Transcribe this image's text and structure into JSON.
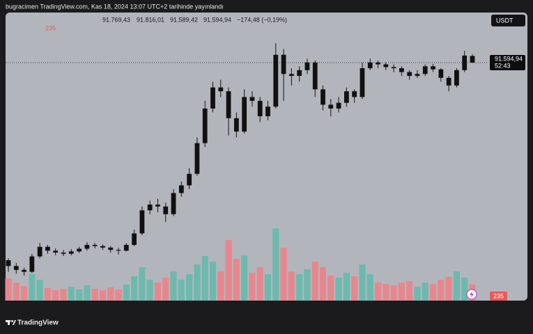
{
  "header": {
    "title": "bugracimen TradingView.com, Kas 18, 2024 13:07 UTC+2 tarihinde yayınlandı"
  },
  "chart_data": {
    "type": "candlestick",
    "currency": "USDT",
    "ohlc_labels": [
      "91.769,43",
      "91.816,01",
      "91.589,42",
      "91.594,94"
    ],
    "change_label": "−174,48 (−0,19%)",
    "last_price_label": "91.594,94",
    "countdown": "52:43",
    "volume_label": "235",
    "ylim": [
      85400,
      92900
    ],
    "vlim": [
      0,
      1300
    ],
    "candle_color": "#111111",
    "up_color": "#6cb9ad",
    "down_color": "#e7878d",
    "ohlc": [
      [
        86450,
        86500,
        86150,
        86300
      ],
      [
        86300,
        86380,
        86100,
        86200
      ],
      [
        86200,
        86260,
        86050,
        86150
      ],
      [
        86150,
        86620,
        86120,
        86550
      ],
      [
        86550,
        86900,
        86500,
        86800
      ],
      [
        86800,
        86850,
        86620,
        86700
      ],
      [
        86700,
        86760,
        86580,
        86650
      ],
      [
        86650,
        86720,
        86560,
        86620
      ],
      [
        86620,
        86740,
        86580,
        86680
      ],
      [
        86680,
        86800,
        86640,
        86750
      ],
      [
        86750,
        86920,
        86700,
        86850
      ],
      [
        86850,
        86900,
        86760,
        86820
      ],
      [
        86820,
        86860,
        86720,
        86780
      ],
      [
        86780,
        86820,
        86650,
        86720
      ],
      [
        86720,
        86780,
        86600,
        86700
      ],
      [
        86700,
        86900,
        86680,
        86850
      ],
      [
        86850,
        87250,
        86820,
        87150
      ],
      [
        87150,
        87850,
        87100,
        87750
      ],
      [
        87750,
        88000,
        87650,
        87900
      ],
      [
        87900,
        88050,
        87700,
        87850
      ],
      [
        87850,
        87950,
        87450,
        87650
      ],
      [
        87650,
        88300,
        87600,
        88200
      ],
      [
        88200,
        88500,
        88100,
        88400
      ],
      [
        88400,
        88850,
        88300,
        88700
      ],
      [
        88700,
        89650,
        88650,
        89500
      ],
      [
        89500,
        90600,
        89400,
        90400
      ],
      [
        90400,
        91100,
        90300,
        90950
      ],
      [
        90950,
        91150,
        90700,
        90850
      ],
      [
        90850,
        90950,
        89700,
        90150
      ],
      [
        90150,
        90300,
        89650,
        89800
      ],
      [
        89800,
        90900,
        89750,
        90700
      ],
      [
        90700,
        90850,
        90450,
        90600
      ],
      [
        90600,
        90700,
        90050,
        90200
      ],
      [
        90200,
        90600,
        90100,
        90450
      ],
      [
        90450,
        92100,
        90400,
        91800
      ],
      [
        91800,
        91950,
        90600,
        91300
      ],
      [
        91300,
        91450,
        91000,
        91250
      ],
      [
        91250,
        91500,
        91100,
        91400
      ],
      [
        91400,
        91700,
        91300,
        91600
      ],
      [
        91600,
        91650,
        90700,
        90900
      ],
      [
        90900,
        91000,
        90350,
        90500
      ],
      [
        90500,
        90650,
        90200,
        90400
      ],
      [
        90400,
        90700,
        90300,
        90550
      ],
      [
        90550,
        90950,
        90450,
        90850
      ],
      [
        90850,
        90900,
        90550,
        90700
      ],
      [
        90700,
        91600,
        90650,
        91450
      ],
      [
        91450,
        91700,
        91400,
        91600
      ],
      [
        91600,
        91650,
        91450,
        91550
      ],
      [
        91550,
        91600,
        91400,
        91480
      ],
      [
        91480,
        91550,
        91350,
        91450
      ],
      [
        91450,
        91500,
        91250,
        91350
      ],
      [
        91350,
        91400,
        91150,
        91250
      ],
      [
        91250,
        91400,
        91200,
        91300
      ],
      [
        91300,
        91550,
        91250,
        91500
      ],
      [
        91500,
        91560,
        91350,
        91420
      ],
      [
        91420,
        91450,
        91100,
        91200
      ],
      [
        91200,
        91250,
        90850,
        91000
      ],
      [
        91000,
        91450,
        90950,
        91400
      ],
      [
        91400,
        91900,
        91350,
        91780
      ],
      [
        91769.43,
        91816.01,
        91589.42,
        91594.94
      ]
    ],
    "volume": [
      320,
      260,
      210,
      380,
      300,
      180,
      150,
      170,
      200,
      160,
      220,
      170,
      150,
      190,
      160,
      230,
      350,
      480,
      300,
      260,
      330,
      420,
      300,
      380,
      520,
      640,
      560,
      420,
      870,
      600,
      650,
      400,
      480,
      380,
      1040,
      760,
      420,
      380,
      450,
      560,
      480,
      360,
      330,
      400,
      350,
      520,
      380,
      260,
      240,
      220,
      260,
      280,
      200,
      260,
      240,
      300,
      340,
      420,
      330,
      235
    ]
  },
  "footer": {
    "brand": "TradingView"
  }
}
